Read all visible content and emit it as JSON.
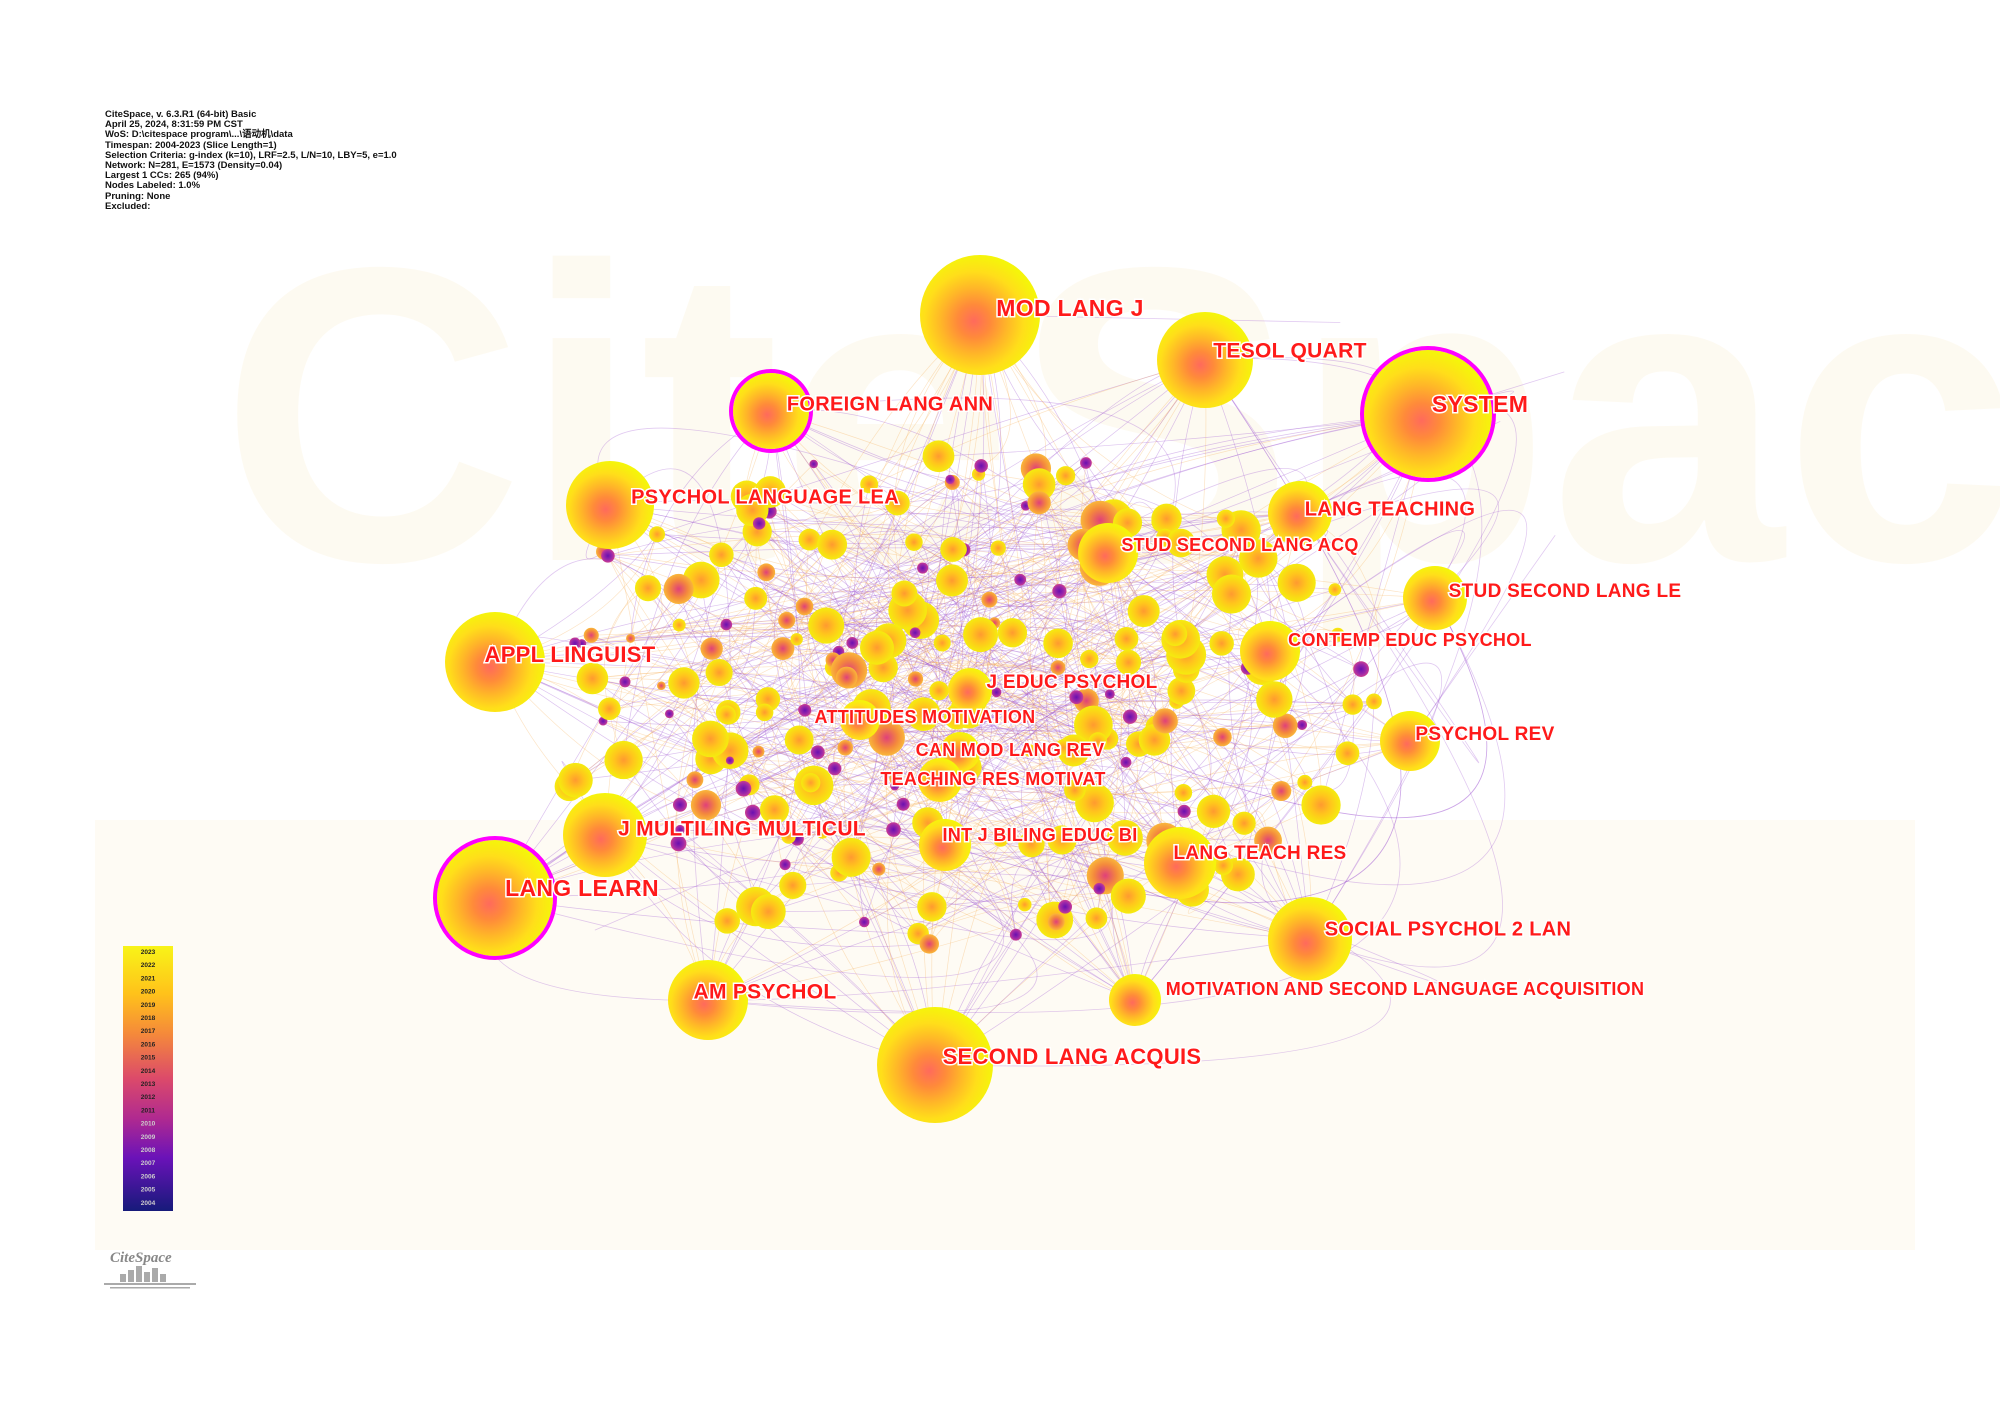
{
  "metadata_lines": [
    "CiteSpace, v. 6.3.R1 (64-bit) Basic",
    "April 25, 2024, 8:31:59 PM CST",
    "WoS: D:\\citespace program\\...\\语动机\\data",
    "Timespan: 2004-2023 (Slice Length=1)",
    "Selection Criteria: g-index (k=10), LRF=2.5, L/N=10, LBY=5, e=1.0",
    "Network: N=281, E=1573 (Density=0.04)",
    "Largest 1 CCs: 265 (94%)",
    "Nodes Labeled: 1.0%",
    "Pruning: None",
    "Excluded:"
  ],
  "watermark": "CiteSpace",
  "logo_text": "CiteSpace",
  "legend": {
    "years": [
      "2023",
      "2022",
      "2021",
      "2020",
      "2019",
      "2018",
      "2017",
      "2016",
      "2015",
      "2014",
      "2013",
      "2012",
      "2011",
      "2010",
      "2009",
      "2008",
      "2007",
      "2006",
      "2005",
      "2004"
    ]
  },
  "nodes": [
    {
      "label": "MOD LANG J",
      "size": "xl",
      "burst": false
    },
    {
      "label": "TESOL QUART",
      "size": "lg",
      "burst": false
    },
    {
      "label": "SYSTEM",
      "size": "xl",
      "burst": true
    },
    {
      "label": "FOREIGN LANG ANN",
      "size": "md",
      "burst": true
    },
    {
      "label": "PSYCHOL LANGUAGE LEA",
      "size": "lg",
      "burst": false
    },
    {
      "label": "LANG TEACHING",
      "size": "md",
      "burst": false
    },
    {
      "label": "STUD SECOND LANG ACQ",
      "size": "md",
      "burst": false
    },
    {
      "label": "STUD SECOND LANG LE",
      "size": "md",
      "burst": false
    },
    {
      "label": "APPL LINGUIST",
      "size": "lg",
      "burst": false
    },
    {
      "label": "CONTEMP EDUC PSYCHOL",
      "size": "md",
      "burst": false
    },
    {
      "label": "J EDUC PSYCHOL",
      "size": "sm",
      "burst": false
    },
    {
      "label": "ATTITUDES MOTIVATION",
      "size": "sm",
      "burst": false
    },
    {
      "label": "CAN MOD LANG REV",
      "size": "sm",
      "burst": false
    },
    {
      "label": "PSYCHOL REV",
      "size": "md",
      "burst": false
    },
    {
      "label": "TEACHING RES MOTIVAT",
      "size": "sm",
      "burst": false
    },
    {
      "label": "J MULTILING MULTICUL",
      "size": "lg",
      "burst": false
    },
    {
      "label": "INT J BILING EDUC BI",
      "size": "sm",
      "burst": false
    },
    {
      "label": "LANG TEACH RES",
      "size": "md",
      "burst": false
    },
    {
      "label": "LANG LEARN",
      "size": "xl",
      "burst": true
    },
    {
      "label": "SOCIAL PSYCHOL 2 LAN",
      "size": "lg",
      "burst": false
    },
    {
      "label": "AM PSYCHOL",
      "size": "lg",
      "burst": false
    },
    {
      "label": "MOTIVATION AND SECOND LANGUAGE ACQUISITION",
      "size": "md",
      "burst": false
    },
    {
      "label": "SECOND LANG ACQUIS",
      "size": "xl",
      "burst": false
    }
  ],
  "colors": {
    "label": "#ff1a1a",
    "burst_ring": "#ff00ff",
    "ring_outer": "#f5f20f",
    "ring_mid": "#ffb020",
    "ring_inner": "#ff7040",
    "edge_purple": "#9b4fd1",
    "edge_orange": "#f6b35c"
  }
}
